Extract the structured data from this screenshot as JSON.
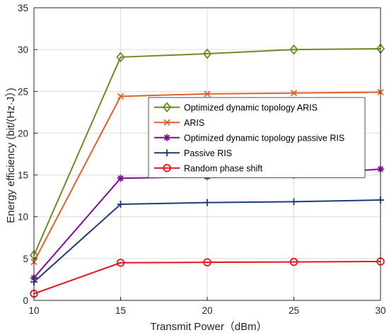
{
  "chart_data": {
    "type": "line",
    "xlabel": "Transmit Power（dBm）",
    "ylabel": "Energy efficiency (bit/(Hz·J）)",
    "x": [
      10,
      15,
      20,
      25,
      30
    ],
    "xlim": [
      10,
      30
    ],
    "ylim": [
      0,
      35
    ],
    "xticks": [
      "10",
      "15",
      "20",
      "25",
      "30"
    ],
    "yticks": [
      "0",
      "5",
      "10",
      "15",
      "20",
      "25",
      "30",
      "35"
    ],
    "grid": true,
    "legend_position": "center-right",
    "series": [
      {
        "name": "Optimized dynamic topology ARIS",
        "color": "#6a8e23",
        "marker": "diamond",
        "values": [
          5.4,
          29.1,
          29.5,
          30.0,
          30.1
        ]
      },
      {
        "name": "ARIS",
        "color": "#e0622a",
        "marker": "x",
        "values": [
          4.6,
          24.4,
          24.7,
          24.8,
          24.9
        ]
      },
      {
        "name": "Optimized dynamic topology passive RIS",
        "color": "#800c95",
        "marker": "star",
        "values": [
          2.7,
          14.6,
          14.8,
          15.0,
          15.7
        ]
      },
      {
        "name": "Passive RIS",
        "color": "#1f3b7a",
        "marker": "plus",
        "values": [
          2.2,
          11.5,
          11.7,
          11.8,
          12.0
        ]
      },
      {
        "name": "Random phase shift",
        "color": "#e8141a",
        "marker": "circle",
        "values": [
          0.8,
          4.5,
          4.55,
          4.6,
          4.65
        ]
      }
    ]
  }
}
